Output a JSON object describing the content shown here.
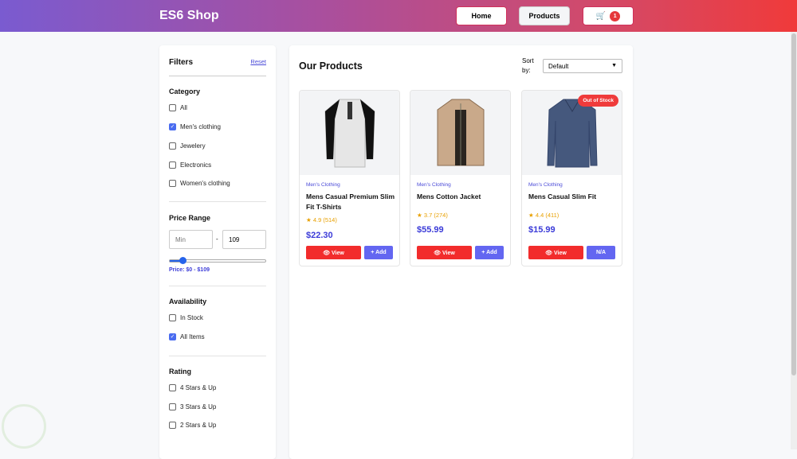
{
  "header": {
    "logo": "ES6 Shop",
    "home": "Home",
    "products": "Products",
    "cart_count": "1"
  },
  "filters": {
    "title": "Filters",
    "reset": "Reset",
    "category_title": "Category",
    "categories": [
      {
        "label": "All",
        "checked": false
      },
      {
        "label": "Men's clothing",
        "checked": true
      },
      {
        "label": "Jewelery",
        "checked": false
      },
      {
        "label": "Electronics",
        "checked": false
      },
      {
        "label": "Women's clothing",
        "checked": false
      }
    ],
    "price_title": "Price Range",
    "min_placeholder": "Min",
    "max_value": "109",
    "separator": "-",
    "slider_fraction": 0.14,
    "price_label": "Price: $0 - $109",
    "availability_title": "Availability",
    "availability": [
      {
        "label": "In Stock",
        "checked": false
      },
      {
        "label": "All Items",
        "checked": true
      }
    ],
    "rating_title": "Rating",
    "ratings": [
      {
        "label": "4 Stars & Up"
      },
      {
        "label": "3 Stars & Up"
      },
      {
        "label": "2 Stars & Up"
      }
    ]
  },
  "main": {
    "title": "Our Products",
    "sort_label": "Sort by:",
    "sort_value": "Default",
    "products": [
      {
        "category": "Men's Clothing",
        "title": "Mens Casual Premium Slim Fit T-Shirts",
        "rating": "4.9 (514)",
        "price": "$22.30",
        "view": "👁 View",
        "action": "+ Add",
        "badge": ""
      },
      {
        "category": "Men's Clothing",
        "title": "Mens Cotton Jacket",
        "rating": "3.7 (274)",
        "price": "$55.99",
        "view": "👁 View",
        "action": "+ Add",
        "badge": ""
      },
      {
        "category": "Men's Clothing",
        "title": "Mens Casual Slim Fit",
        "rating": "4.4 (411)",
        "price": "$15.99",
        "view": "👁 View",
        "action": "N/A",
        "badge": "Out of Stock"
      }
    ]
  }
}
